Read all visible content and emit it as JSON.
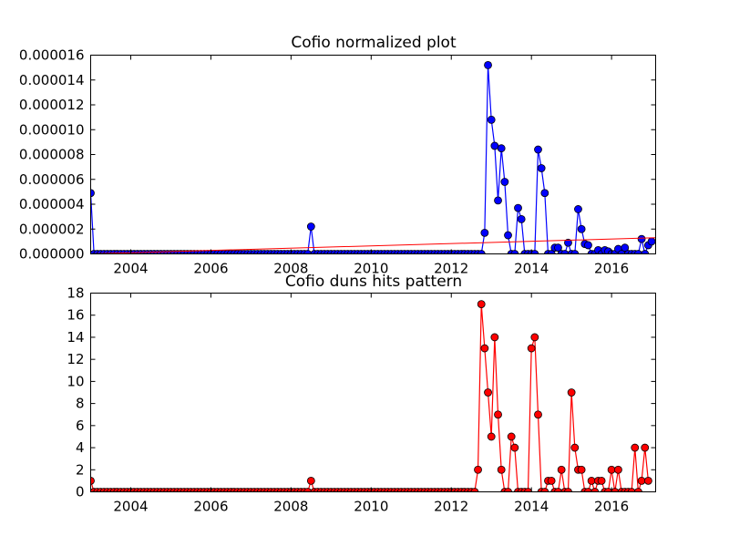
{
  "colors": {
    "top_series": "#0000ff",
    "bottom_series": "#ff0000",
    "trend": "#ff0000"
  },
  "chart_data": [
    {
      "type": "line",
      "title": "Cofio normalized plot",
      "xlabel": "",
      "ylabel": "",
      "xlim": [
        2003.0,
        2017.1
      ],
      "ylim": [
        0,
        1.6e-05
      ],
      "grid": false,
      "legend": "none",
      "xticks": [
        {
          "v": 2004,
          "label": "2004"
        },
        {
          "v": 2006,
          "label": "2006"
        },
        {
          "v": 2008,
          "label": "2008"
        },
        {
          "v": 2010,
          "label": "2010"
        },
        {
          "v": 2012,
          "label": "2012"
        },
        {
          "v": 2014,
          "label": "2014"
        },
        {
          "v": 2016,
          "label": "2016"
        }
      ],
      "yticks": [
        {
          "v": 0,
          "label": "0.000000"
        },
        {
          "v": 2e-06,
          "label": "0.000002"
        },
        {
          "v": 4e-06,
          "label": "0.000004"
        },
        {
          "v": 6e-06,
          "label": "0.000006"
        },
        {
          "v": 8e-06,
          "label": "0.000008"
        },
        {
          "v": 1e-05,
          "label": "0.000010"
        },
        {
          "v": 1.2e-05,
          "label": "0.000012"
        },
        {
          "v": 1.4e-05,
          "label": "0.000014"
        },
        {
          "v": 1.6e-05,
          "label": "0.000016"
        }
      ],
      "series": [
        {
          "color": "#0000ff",
          "marker": "circle",
          "x_start": 2003.0,
          "x_step": 0.08333,
          "values": [
            4.9e-06,
            0,
            0,
            0,
            0,
            0,
            0,
            0,
            0,
            0,
            0,
            0,
            0,
            0,
            0,
            0,
            0,
            0,
            0,
            0,
            0,
            0,
            0,
            0,
            0,
            0,
            0,
            0,
            0,
            0,
            0,
            0,
            0,
            0,
            0,
            0,
            0,
            0,
            0,
            0,
            0,
            0,
            0,
            0,
            0,
            0,
            0,
            0,
            0,
            0,
            0,
            0,
            0,
            0,
            0,
            0,
            0,
            0,
            0,
            0,
            0,
            0,
            0,
            0,
            0,
            0,
            2.2e-06,
            0,
            0,
            0,
            0,
            0,
            0,
            0,
            0,
            0,
            0,
            0,
            0,
            0,
            0,
            0,
            0,
            0,
            0,
            0,
            0,
            0,
            0,
            0,
            0,
            0,
            0,
            0,
            0,
            0,
            0,
            0,
            0,
            0,
            0,
            0,
            0,
            0,
            0,
            0,
            0,
            0,
            0,
            0,
            0,
            0,
            0,
            0,
            0,
            0,
            0,
            0,
            1.7e-06,
            1.52e-05,
            1.08e-05,
            8.7e-06,
            4.3e-06,
            8.5e-06,
            5.8e-06,
            1.5e-06,
            0,
            0,
            3.7e-06,
            2.8e-06,
            0,
            0,
            0,
            0,
            8.4e-06,
            6.9e-06,
            4.9e-06,
            0,
            0,
            5e-07,
            5e-07,
            0,
            0,
            9e-07,
            0,
            0,
            3.6e-06,
            2e-06,
            8e-07,
            7e-07,
            0,
            0,
            3e-07,
            0,
            3e-07,
            2e-07,
            0,
            0,
            4e-07,
            0,
            5e-07,
            0,
            0,
            0,
            0,
            1.2e-06,
            0,
            7e-07,
            1e-06
          ]
        },
        {
          "type": "trend-line",
          "color": "#ff0000",
          "x": [
            2003.0,
            2017.1
          ],
          "y": [
            0,
            1.3e-06
          ]
        }
      ]
    },
    {
      "type": "line",
      "title": "Cofio duns hits pattern",
      "xlabel": "",
      "ylabel": "",
      "xlim": [
        2003.0,
        2017.1
      ],
      "ylim": [
        0,
        18
      ],
      "grid": false,
      "legend": "none",
      "xticks": [
        {
          "v": 2004,
          "label": "2004"
        },
        {
          "v": 2006,
          "label": "2006"
        },
        {
          "v": 2008,
          "label": "2008"
        },
        {
          "v": 2010,
          "label": "2010"
        },
        {
          "v": 2012,
          "label": "2012"
        },
        {
          "v": 2014,
          "label": "2014"
        },
        {
          "v": 2016,
          "label": "2016"
        }
      ],
      "yticks": [
        {
          "v": 0,
          "label": "0"
        },
        {
          "v": 2,
          "label": "2"
        },
        {
          "v": 4,
          "label": "4"
        },
        {
          "v": 6,
          "label": "6"
        },
        {
          "v": 8,
          "label": "8"
        },
        {
          "v": 10,
          "label": "10"
        },
        {
          "v": 12,
          "label": "12"
        },
        {
          "v": 14,
          "label": "14"
        },
        {
          "v": 16,
          "label": "16"
        },
        {
          "v": 18,
          "label": "18"
        }
      ],
      "series": [
        {
          "color": "#ff0000",
          "marker": "circle",
          "x_start": 2003.0,
          "x_step": 0.08333,
          "values": [
            1,
            0,
            0,
            0,
            0,
            0,
            0,
            0,
            0,
            0,
            0,
            0,
            0,
            0,
            0,
            0,
            0,
            0,
            0,
            0,
            0,
            0,
            0,
            0,
            0,
            0,
            0,
            0,
            0,
            0,
            0,
            0,
            0,
            0,
            0,
            0,
            0,
            0,
            0,
            0,
            0,
            0,
            0,
            0,
            0,
            0,
            0,
            0,
            0,
            0,
            0,
            0,
            0,
            0,
            0,
            0,
            0,
            0,
            0,
            0,
            0,
            0,
            0,
            0,
            0,
            0,
            1,
            0,
            0,
            0,
            0,
            0,
            0,
            0,
            0,
            0,
            0,
            0,
            0,
            0,
            0,
            0,
            0,
            0,
            0,
            0,
            0,
            0,
            0,
            0,
            0,
            0,
            0,
            0,
            0,
            0,
            0,
            0,
            0,
            0,
            0,
            0,
            0,
            0,
            0,
            0,
            0,
            0,
            0,
            0,
            0,
            0,
            0,
            0,
            0,
            0,
            2,
            17,
            13,
            9,
            5,
            14,
            7,
            2,
            0,
            0,
            5,
            4,
            0,
            0,
            0,
            0,
            13,
            14,
            7,
            0,
            0,
            1,
            1,
            0,
            0,
            2,
            0,
            0,
            9,
            4,
            2,
            2,
            0,
            0,
            1,
            0,
            1,
            1,
            0,
            0,
            2,
            0,
            2,
            0,
            0,
            0,
            0,
            4,
            0,
            1,
            4,
            1
          ]
        }
      ]
    }
  ]
}
